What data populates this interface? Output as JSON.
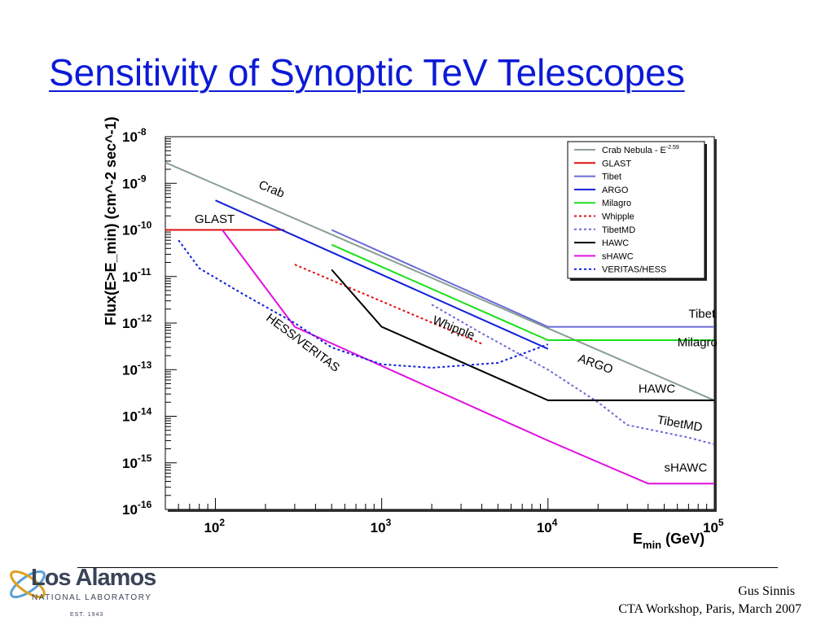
{
  "title": "Sensitivity of Synoptic TeV Telescopes",
  "footer": {
    "author": "Gus Sinnis",
    "event": "CTA Workshop, Paris, March 2007"
  },
  "logo": {
    "name": "Los Alamos",
    "subtitle": "NATIONAL LABORATORY",
    "established": "EST. 1943"
  },
  "chart_data": {
    "type": "line",
    "x_scale": "log",
    "y_scale": "log",
    "xlim": [
      50,
      100000
    ],
    "ylim": [
      1e-16,
      1e-08
    ],
    "xlabel": {
      "base": "E",
      "sub": "min",
      "tail": " (GeV)"
    },
    "ylabel": "Flux(E>E_min) (cm^-2 sec^-1)",
    "x_ticks": [
      {
        "value": 100,
        "label": "10",
        "exp": "2"
      },
      {
        "value": 1000,
        "label": "10",
        "exp": "3"
      },
      {
        "value": 10000,
        "label": "10",
        "exp": "4"
      },
      {
        "value": 100000,
        "label": "10",
        "exp": "5"
      }
    ],
    "y_ticks": [
      {
        "value": 1e-08,
        "label": "10",
        "exp": "-8"
      },
      {
        "value": 1e-09,
        "label": "10",
        "exp": "-9"
      },
      {
        "value": 1e-10,
        "label": "10",
        "exp": "-10"
      },
      {
        "value": 1e-11,
        "label": "10",
        "exp": "-11"
      },
      {
        "value": 1e-12,
        "label": "10",
        "exp": "-12"
      },
      {
        "value": 1e-13,
        "label": "10",
        "exp": "-13"
      },
      {
        "value": 1e-14,
        "label": "10",
        "exp": "-14"
      },
      {
        "value": 1e-15,
        "label": "10",
        "exp": "-15"
      },
      {
        "value": 1e-16,
        "label": "10",
        "exp": "-16"
      }
    ],
    "legend_position": "top-right",
    "series": [
      {
        "name": "Crab Nebula - E^-2.59",
        "legend": {
          "base": "Crab Nebula - E",
          "exp": "-2.59"
        },
        "color": "#8aa093",
        "dash": "solid",
        "points": [
          [
            50,
            2.8e-09
          ],
          [
            100000,
            2.2e-14
          ]
        ]
      },
      {
        "name": "GLAST",
        "color": "#e01010",
        "dash": "solid",
        "points": [
          [
            50,
            1e-10
          ],
          [
            260,
            1e-10
          ]
        ]
      },
      {
        "name": "Tibet",
        "color": "#6a6ad8",
        "dash": "solid",
        "points": [
          [
            500,
            1e-10
          ],
          [
            10000,
            8.3e-13
          ],
          [
            100000,
            8.3e-13
          ]
        ]
      },
      {
        "name": "ARGO",
        "color": "#1020d8",
        "dash": "solid",
        "points": [
          [
            100,
            4.3e-10
          ],
          [
            10000,
            2.8e-13
          ]
        ]
      },
      {
        "name": "Milagro",
        "color": "#18e018",
        "dash": "solid",
        "points": [
          [
            500,
            4.8e-11
          ],
          [
            10000,
            4.3e-13
          ],
          [
            100000,
            4.3e-13
          ]
        ]
      },
      {
        "name": "Whipple",
        "color": "#e01010",
        "dash": "dotted",
        "points": [
          [
            300,
            1.8e-11
          ],
          [
            4000,
            3.6e-13
          ]
        ]
      },
      {
        "name": "TibetMD",
        "color": "#6a6ad8",
        "dash": "dotted",
        "points": [
          [
            2000,
            2.5e-12
          ],
          [
            4000,
            6e-13
          ],
          [
            10000,
            1e-13
          ],
          [
            20000,
            2e-14
          ],
          [
            30000,
            6.5e-15
          ],
          [
            70000,
            3.5e-15
          ],
          [
            100000,
            2.5e-15
          ]
        ]
      },
      {
        "name": "HAWC",
        "color": "#000000",
        "dash": "solid",
        "points": [
          [
            500,
            1.4e-11
          ],
          [
            1000,
            8.3e-13
          ],
          [
            10000,
            2.2e-14
          ],
          [
            100000,
            2.2e-14
          ]
        ]
      },
      {
        "name": "sHAWC",
        "color": "#e010e0",
        "dash": "solid",
        "points": [
          [
            110,
            1e-10
          ],
          [
            300,
            8.3e-13
          ],
          [
            10000,
            3e-15
          ],
          [
            40000,
            3.6e-16
          ],
          [
            100000,
            3.6e-16
          ]
        ]
      },
      {
        "name": "VERITAS/HESS",
        "color": "#1020d8",
        "dash": "dotted",
        "points": [
          [
            60,
            6e-11
          ],
          [
            80,
            1.5e-11
          ],
          [
            150,
            4e-12
          ],
          [
            300,
            1e-12
          ],
          [
            500,
            3e-13
          ],
          [
            1000,
            1.3e-13
          ],
          [
            2000,
            1.1e-13
          ],
          [
            5000,
            1.4e-13
          ],
          [
            10000,
            3.5e-13
          ]
        ]
      }
    ],
    "annotations": [
      {
        "text": "Crab",
        "x": 180,
        "y": 8e-10,
        "angle": 22
      },
      {
        "text": "GLAST",
        "x": 75,
        "y": 1.4e-10,
        "angle": 0
      },
      {
        "text": "HESS/VERITAS",
        "x": 200,
        "y": 1.2e-12,
        "angle": 37
      },
      {
        "text": "Whipple",
        "x": 2000,
        "y": 1e-12,
        "angle": 22
      },
      {
        "text": "ARGO",
        "x": 15000,
        "y": 1.5e-13,
        "angle": 20
      },
      {
        "text": "Tibet",
        "x": 70000,
        "y": 1.3e-12,
        "angle": 0
      },
      {
        "text": "Milagro",
        "x": 60000,
        "y": 3.2e-13,
        "angle": 0
      },
      {
        "text": "HAWC",
        "x": 35000,
        "y": 3.2e-14,
        "angle": 0
      },
      {
        "text": "TibetMD",
        "x": 45000,
        "y": 7e-15,
        "angle": 10
      },
      {
        "text": "sHAWC",
        "x": 50000,
        "y": 6.5e-16,
        "angle": 0
      }
    ]
  }
}
